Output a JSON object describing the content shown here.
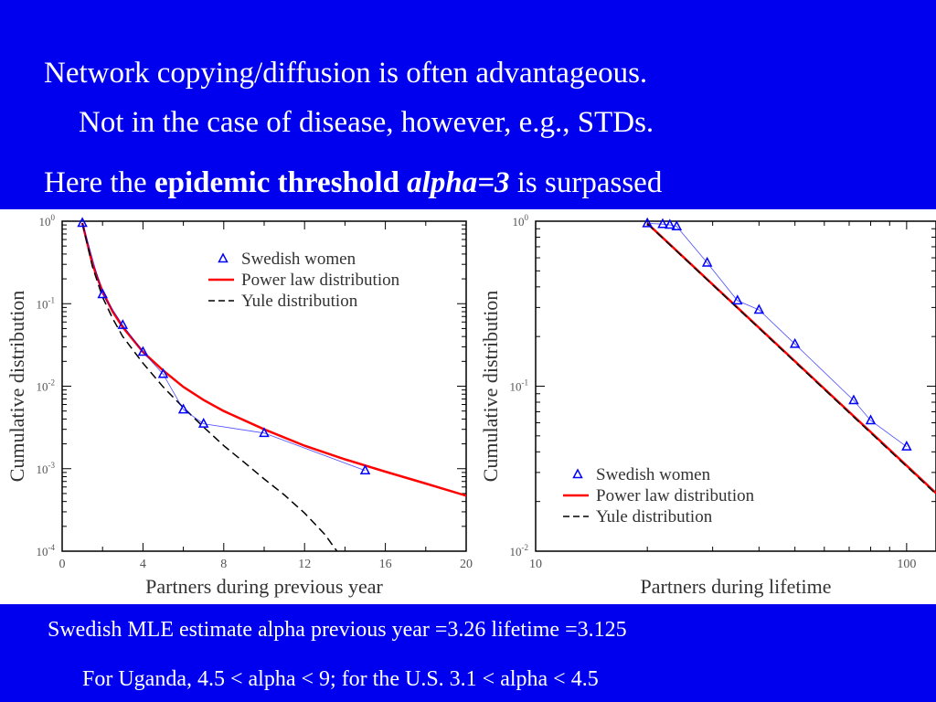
{
  "slide": {
    "line1": "Network copying/diffusion is often advantageous.",
    "line2": "Not in the case of disease, however, e.g., STDs.",
    "line3_prefix": "Here the ",
    "line3_bold": "epidemic threshold ",
    "line3_italic": "alpha=3",
    "line3_suffix": " is surpassed",
    "footnote1": "Swedish MLE estimate alpha previous year =3.26 lifetime =3.125",
    "footnote2": "For Uganda, 4.5 < alpha < 9; for the U.S. 3.1 < alpha < 4.5"
  },
  "colors": {
    "background": "#0000ee",
    "text": "#ffffff",
    "panel": "#ffffff",
    "data_series": "#0000ff",
    "power_law": "#ff0000",
    "yule": "#000000"
  },
  "chart_data": [
    {
      "type": "scatter",
      "xlabel": "Partners during previous year",
      "ylabel": "Cumulative distribution",
      "xscale": "linear",
      "yscale": "log",
      "xlim": [
        0,
        20
      ],
      "ylim": [
        0.0001,
        1
      ],
      "xticks": [
        0,
        4,
        8,
        12,
        16,
        20
      ],
      "yticks": [
        {
          "value": 1,
          "base": "10",
          "exp": "0"
        },
        {
          "value": 0.1,
          "base": "10",
          "exp": "-1"
        },
        {
          "value": 0.01,
          "base": "10",
          "exp": "-2"
        },
        {
          "value": 0.001,
          "base": "10",
          "exp": "-3"
        },
        {
          "value": 0.0001,
          "base": "10",
          "exp": "-4"
        }
      ],
      "legend_position": "top-right",
      "series": [
        {
          "name": "Swedish women",
          "kind": "markers-line",
          "x": [
            1,
            2,
            3,
            4,
            5,
            6,
            7,
            10,
            15
          ],
          "y": [
            0.95,
            0.13,
            0.055,
            0.026,
            0.014,
            0.0052,
            0.0035,
            0.0027,
            0.00095
          ]
        },
        {
          "name": "Power law distribution",
          "kind": "line",
          "x": [
            1,
            1.5,
            2,
            2.5,
            3,
            4,
            5,
            6,
            7,
            8,
            10,
            12,
            14,
            16,
            18,
            20
          ],
          "y": [
            0.95,
            0.3,
            0.14,
            0.08,
            0.052,
            0.026,
            0.0155,
            0.0098,
            0.0068,
            0.005,
            0.003,
            0.0019,
            0.0013,
            0.00092,
            0.00066,
            0.00047
          ]
        },
        {
          "name": "Yule distribution",
          "kind": "dashed",
          "x": [
            1,
            1.5,
            2,
            2.5,
            3,
            4,
            5,
            6,
            7,
            8,
            9,
            10,
            11,
            12,
            13,
            13.6
          ],
          "y": [
            0.95,
            0.28,
            0.12,
            0.066,
            0.04,
            0.019,
            0.0098,
            0.0055,
            0.0032,
            0.0019,
            0.0012,
            0.00075,
            0.00048,
            0.00029,
            0.00016,
            0.0001
          ]
        }
      ]
    },
    {
      "type": "scatter",
      "xlabel": "Partners during lifetime",
      "ylabel": "Cumulative distribution",
      "xscale": "log",
      "yscale": "log",
      "xlim": [
        10,
        120
      ],
      "ylim": [
        0.01,
        1
      ],
      "xticks": [
        {
          "value": 10,
          "label": "10"
        },
        {
          "value": 100,
          "label": "100"
        }
      ],
      "yticks": [
        {
          "value": 1,
          "base": "10",
          "exp": "0"
        },
        {
          "value": 0.1,
          "base": "10",
          "exp": "-1"
        },
        {
          "value": 0.01,
          "base": "10",
          "exp": "-2"
        }
      ],
      "legend_position": "bottom-left",
      "series": [
        {
          "name": "Swedish women",
          "kind": "markers-line",
          "x": [
            20,
            22,
            23,
            24,
            29,
            35,
            40,
            50,
            72,
            80,
            100
          ],
          "y": [
            0.97,
            0.96,
            0.95,
            0.93,
            0.56,
            0.33,
            0.29,
            0.18,
            0.082,
            0.062,
            0.043
          ]
        },
        {
          "name": "Power law distribution",
          "kind": "line",
          "x": [
            20,
            120
          ],
          "y": [
            0.97,
            0.0225
          ]
        },
        {
          "name": "Yule distribution",
          "kind": "dashed",
          "x": [
            20,
            120
          ],
          "y": [
            0.965,
            0.0222
          ]
        }
      ]
    }
  ]
}
